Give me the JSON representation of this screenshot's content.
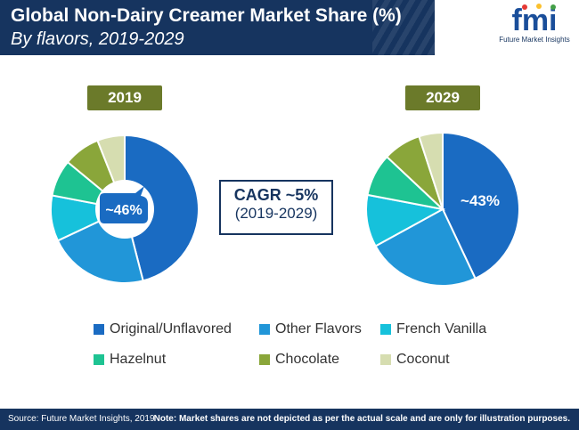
{
  "header": {
    "title": "Global Non-Dairy Creamer Market Share (%)",
    "subtitle": "By flavors, 2019-2029"
  },
  "logo": {
    "wordmark": "fmi",
    "tagline": "Future Market Insights"
  },
  "colors": {
    "header_bg": "#16345f",
    "badge_bg": "#6b7a2a",
    "Original/Unflavored": "#1a6bc2",
    "Other Flavors": "#2196d8",
    "French Vanilla": "#16c1db",
    "Hazelnut": "#1ec392",
    "Chocolate": "#8aa63a",
    "Coconut": "#d6ddb0"
  },
  "cagr": {
    "label": "CAGR ~5%",
    "period": "(2019-2029)"
  },
  "chart_data": [
    {
      "type": "pie",
      "variant": "donut",
      "badge": "2019",
      "slices": [
        {
          "label": "Original/Unflavored",
          "value": 46
        },
        {
          "label": "Other Flavors",
          "value": 22
        },
        {
          "label": "French Vanilla",
          "value": 10
        },
        {
          "label": "Hazelnut",
          "value": 8
        },
        {
          "label": "Chocolate",
          "value": 8
        },
        {
          "label": "Coconut",
          "value": 6
        }
      ],
      "annotation": "~46%"
    },
    {
      "type": "pie",
      "variant": "pie",
      "badge": "2029",
      "slices": [
        {
          "label": "Original/Unflavored",
          "value": 43
        },
        {
          "label": "Other Flavors",
          "value": 24
        },
        {
          "label": "French Vanilla",
          "value": 11
        },
        {
          "label": "Hazelnut",
          "value": 9
        },
        {
          "label": "Chocolate",
          "value": 8
        },
        {
          "label": "Coconut",
          "value": 5
        }
      ],
      "annotation": "~43%"
    }
  ],
  "legend": {
    "items": [
      "Original/Unflavored",
      "Other Flavors",
      "French Vanilla",
      "Hazelnut",
      "Chocolate",
      "Coconut"
    ]
  },
  "footer": {
    "source": "Source: Future Market Insights, 2019",
    "note": "Note: Market shares are not depicted as per the actual scale and are only for illustration purposes."
  }
}
